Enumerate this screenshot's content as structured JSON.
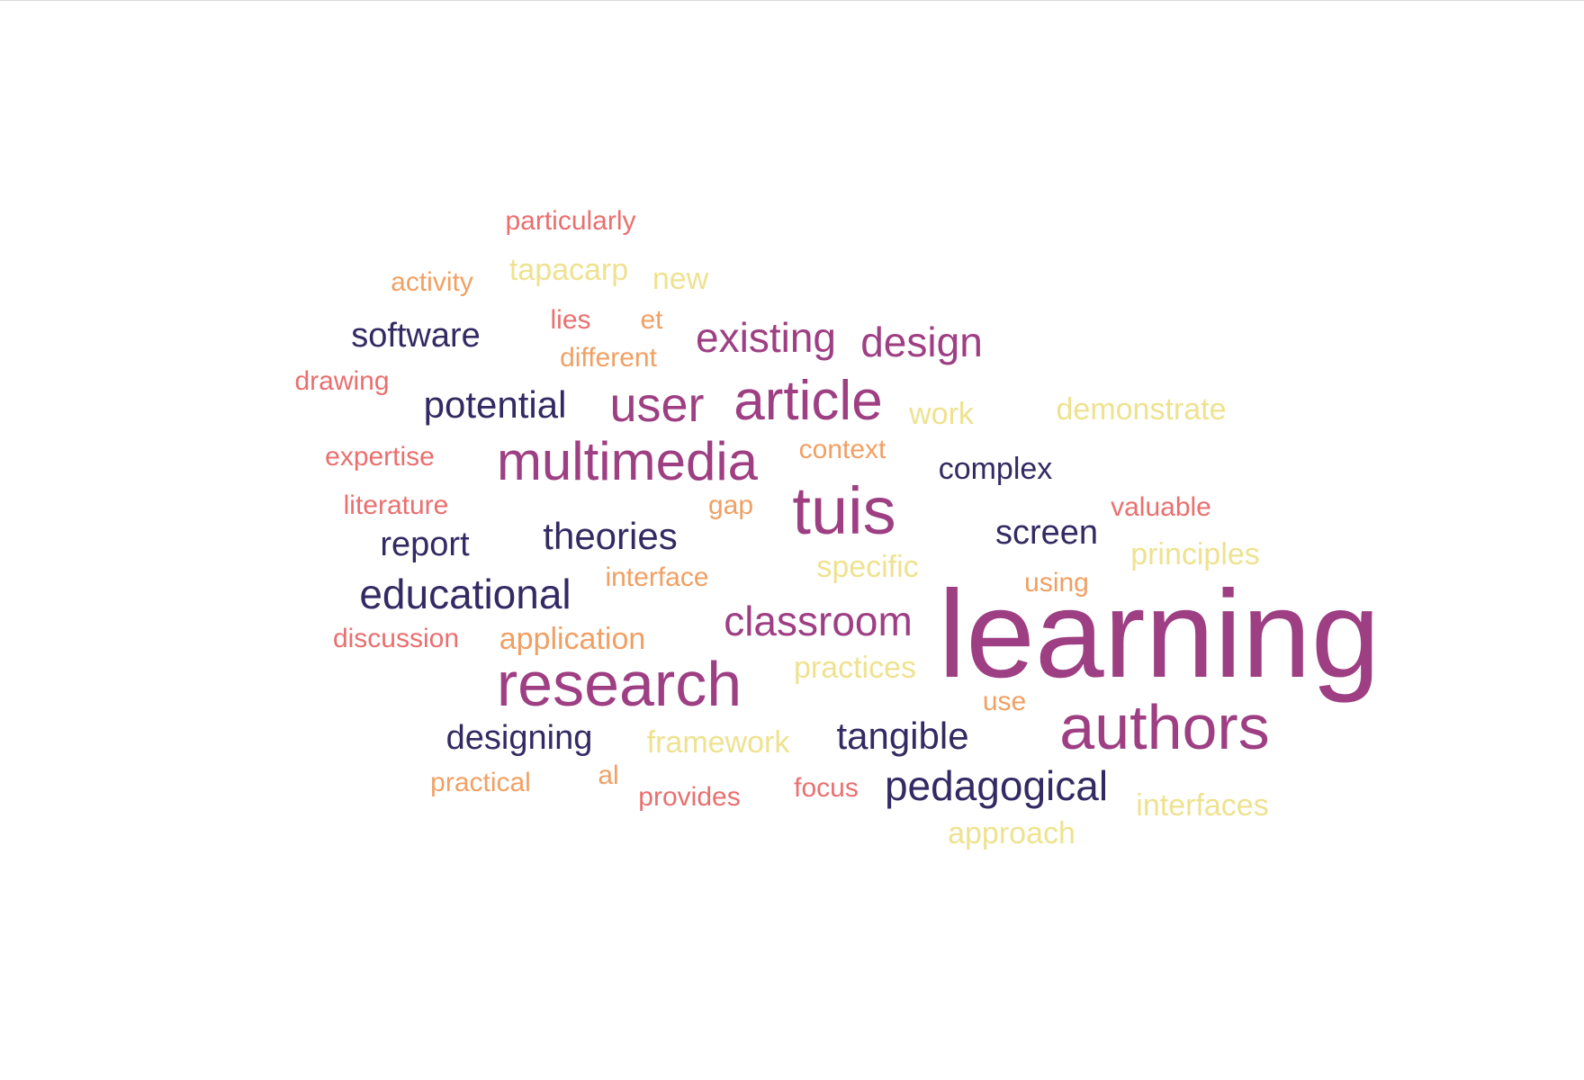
{
  "palette": {
    "purple": "#9e3f83",
    "navy": "#332a63",
    "red": "#ea6f6f",
    "orange": "#f0a064",
    "yellow": "#eee290"
  },
  "words": [
    {
      "text": "learning",
      "color": "purple"
    },
    {
      "text": "authors",
      "color": "purple"
    },
    {
      "text": "research",
      "color": "purple"
    },
    {
      "text": "tuis",
      "color": "purple"
    },
    {
      "text": "multimedia",
      "color": "purple"
    },
    {
      "text": "article",
      "color": "purple"
    },
    {
      "text": "user",
      "color": "purple"
    },
    {
      "text": "existing",
      "color": "purple"
    },
    {
      "text": "design",
      "color": "purple"
    },
    {
      "text": "classroom",
      "color": "purple"
    },
    {
      "text": "educational",
      "color": "navy"
    },
    {
      "text": "pedagogical",
      "color": "navy"
    },
    {
      "text": "theories",
      "color": "navy"
    },
    {
      "text": "potential",
      "color": "navy"
    },
    {
      "text": "tangible",
      "color": "navy"
    },
    {
      "text": "designing",
      "color": "navy"
    },
    {
      "text": "software",
      "color": "navy"
    },
    {
      "text": "report",
      "color": "navy"
    },
    {
      "text": "screen",
      "color": "navy"
    },
    {
      "text": "complex",
      "color": "navy"
    },
    {
      "text": "particularly",
      "color": "red"
    },
    {
      "text": "lies",
      "color": "red"
    },
    {
      "text": "drawing",
      "color": "red"
    },
    {
      "text": "expertise",
      "color": "red"
    },
    {
      "text": "context",
      "color": "orange"
    },
    {
      "text": "literature",
      "color": "red"
    },
    {
      "text": "valuable",
      "color": "red"
    },
    {
      "text": "discussion",
      "color": "red"
    },
    {
      "text": "provides",
      "color": "red"
    },
    {
      "text": "focus",
      "color": "red"
    },
    {
      "text": "activity",
      "color": "orange"
    },
    {
      "text": "et",
      "color": "orange"
    },
    {
      "text": "different",
      "color": "orange"
    },
    {
      "text": "gap",
      "color": "orange"
    },
    {
      "text": "interface",
      "color": "orange"
    },
    {
      "text": "using",
      "color": "orange"
    },
    {
      "text": "application",
      "color": "orange"
    },
    {
      "text": "use",
      "color": "orange"
    },
    {
      "text": "practical",
      "color": "orange"
    },
    {
      "text": "al",
      "color": "orange"
    },
    {
      "text": "tapacarp",
      "color": "yellow"
    },
    {
      "text": "new",
      "color": "yellow"
    },
    {
      "text": "work",
      "color": "yellow"
    },
    {
      "text": "demonstrate",
      "color": "yellow"
    },
    {
      "text": "specific",
      "color": "yellow"
    },
    {
      "text": "principles",
      "color": "yellow"
    },
    {
      "text": "practices",
      "color": "yellow"
    },
    {
      "text": "framework",
      "color": "yellow"
    },
    {
      "text": "interfaces",
      "color": "yellow"
    },
    {
      "text": "approach",
      "color": "yellow"
    }
  ]
}
